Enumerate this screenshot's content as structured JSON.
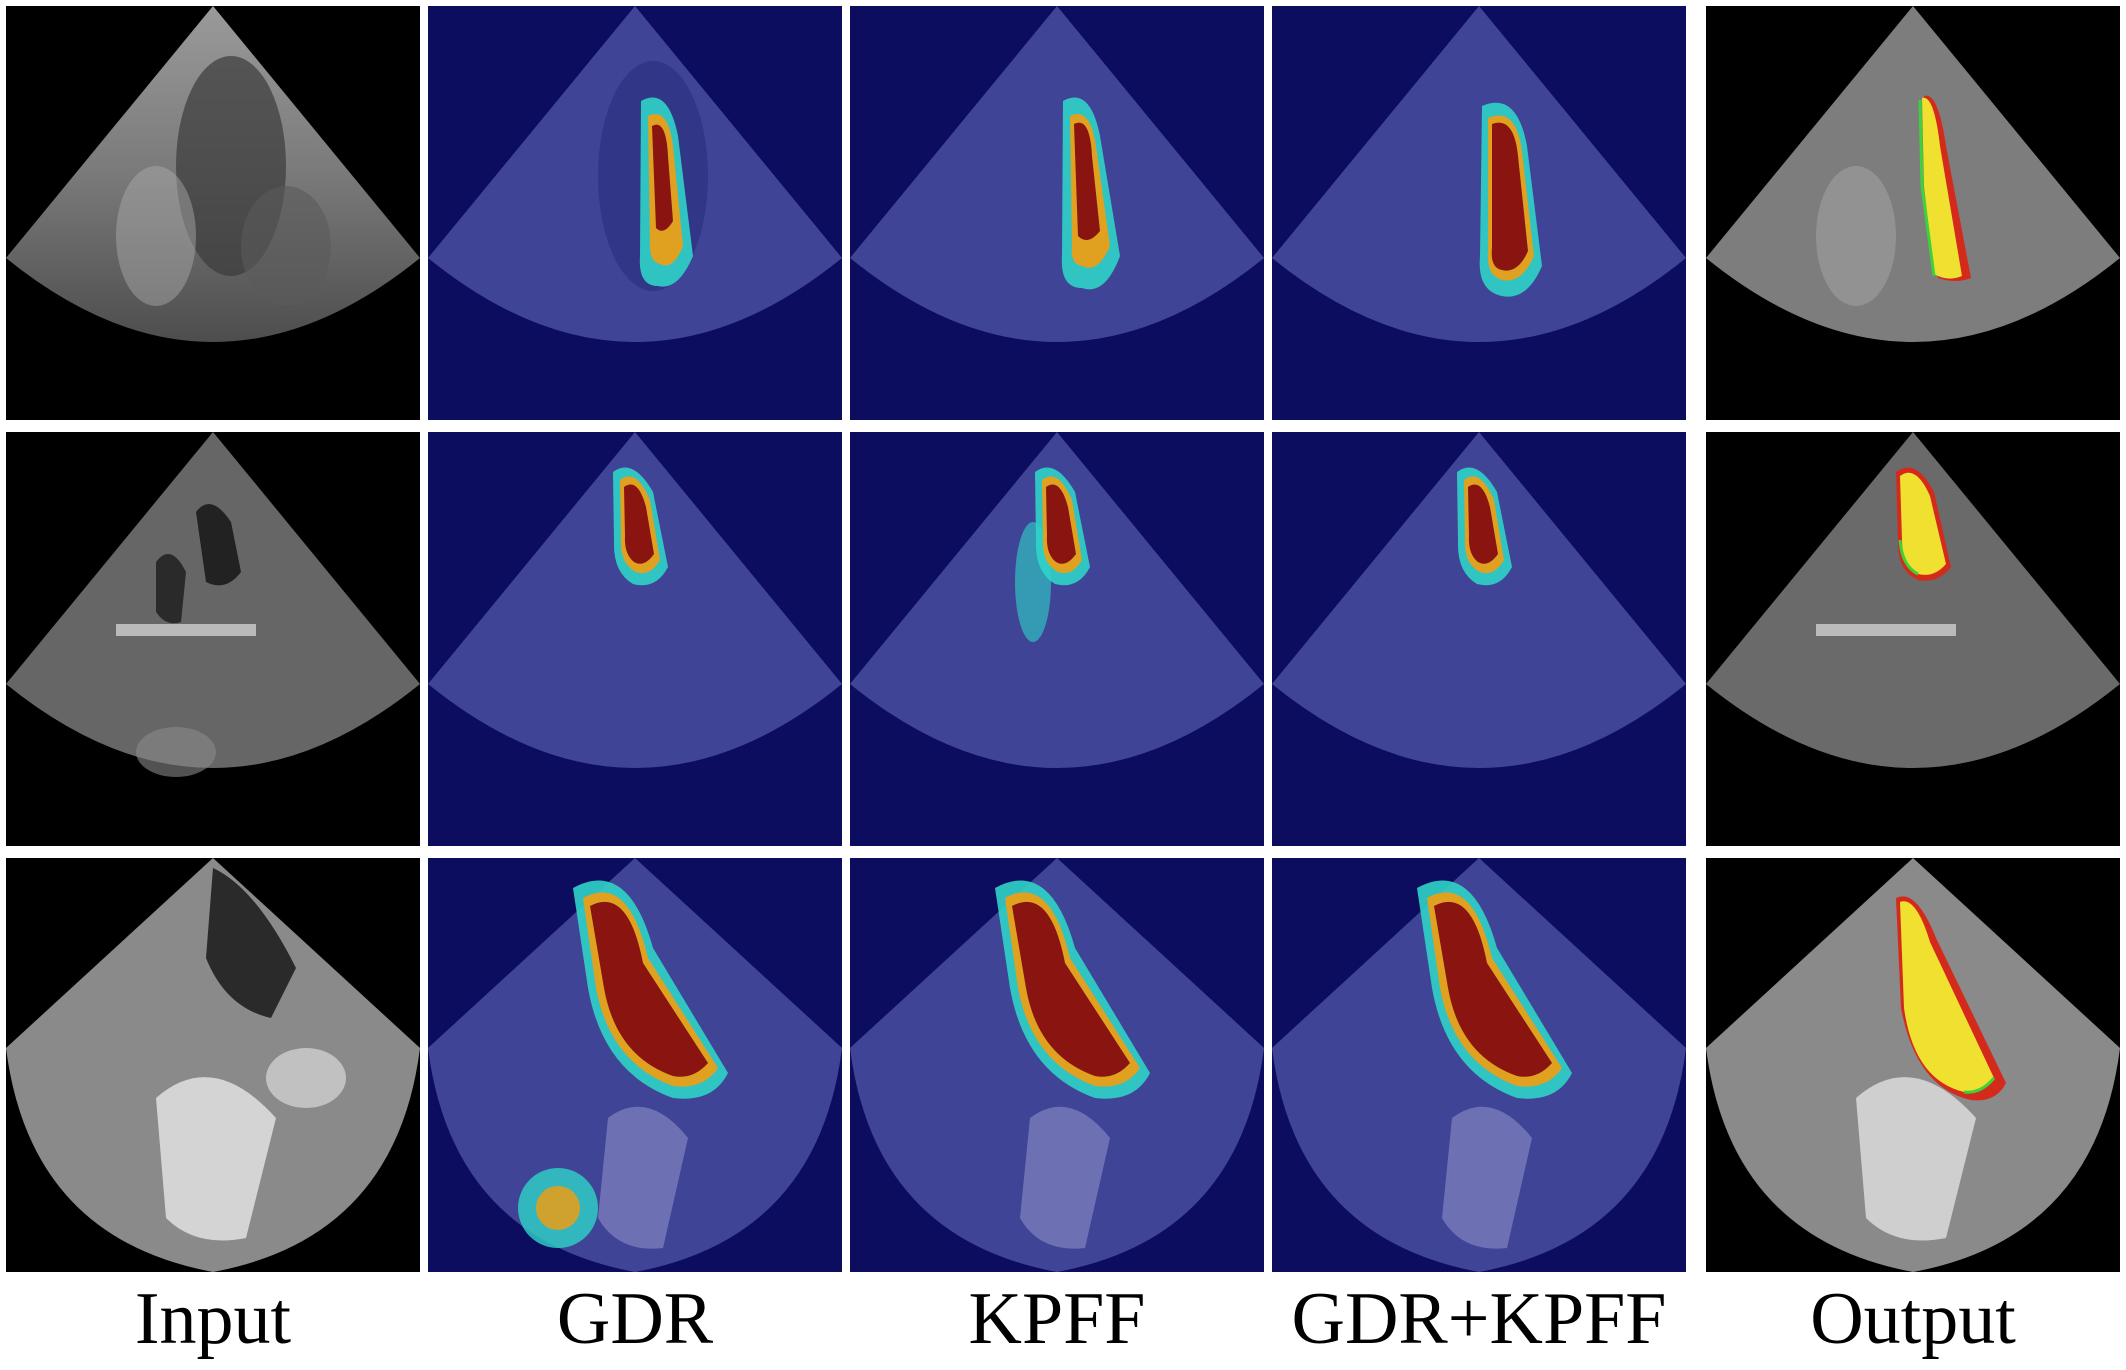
{
  "figure": {
    "columns": [
      {
        "key": "input",
        "label": "Input"
      },
      {
        "key": "gdr",
        "label": "GDR"
      },
      {
        "key": "kpff",
        "label": "KPFF"
      },
      {
        "key": "gdrkpff",
        "label": "GDR+KPFF"
      },
      {
        "key": "output",
        "label": "Output"
      }
    ],
    "rows": 3,
    "colors": {
      "background": "#ffffff",
      "ultrasound_black": "#000000",
      "heatmap_low": "#0c0d5e",
      "heatmap_mid": "#2fd4c8",
      "heatmap_high": "#8a1410",
      "segmentation_fill": "#f0e030",
      "prediction_edge": "#d42a1c",
      "ground_truth_edge": "#3cd23c"
    }
  }
}
